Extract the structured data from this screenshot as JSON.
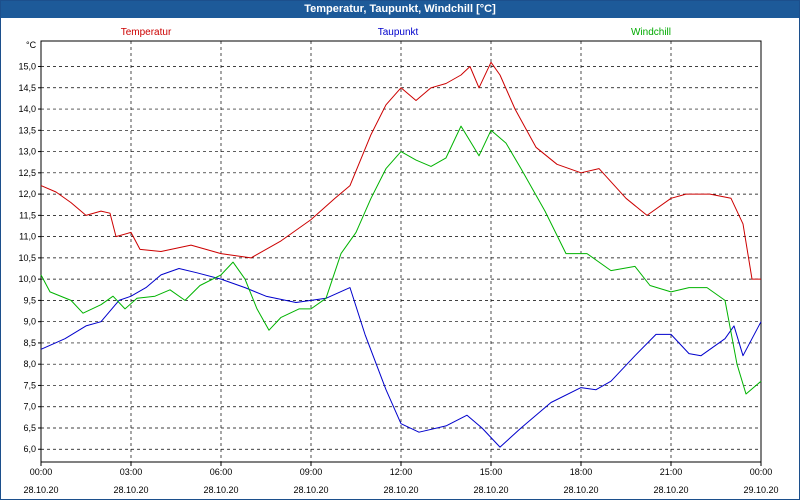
{
  "chart_data": {
    "type": "line",
    "title": "Temperatur, Taupunkt, Windchill [°C]",
    "ylabel": "°C",
    "xlabel": "",
    "ylim": [
      5.7,
      15.6
    ],
    "xlim": [
      0,
      24
    ],
    "grid": true,
    "yticks": [
      "6,0",
      "6,5",
      "7,0",
      "7,5",
      "8,0",
      "8,5",
      "9,0",
      "9,5",
      "10,0",
      "10,5",
      "11,0",
      "11,5",
      "12,0",
      "12,5",
      "13,0",
      "13,5",
      "14,0",
      "14,5",
      "15,0"
    ],
    "xticks": [
      {
        "time": "00:00",
        "date": "28.10.20"
      },
      {
        "time": "03:00",
        "date": "28.10.20"
      },
      {
        "time": "06:00",
        "date": "28.10.20"
      },
      {
        "time": "09:00",
        "date": "28.10.20"
      },
      {
        "time": "12:00",
        "date": "28.10.20"
      },
      {
        "time": "15:00",
        "date": "28.10.20"
      },
      {
        "time": "18:00",
        "date": "28.10.20"
      },
      {
        "time": "21:00",
        "date": "28.10.20"
      },
      {
        "time": "00:00",
        "date": "29.10.20"
      }
    ],
    "legend_placement": "top",
    "series": [
      {
        "name": "Temperatur",
        "color": "#cc0000",
        "points": [
          [
            0,
            12.2
          ],
          [
            0.5,
            12.05
          ],
          [
            1,
            11.8
          ],
          [
            1.5,
            11.5
          ],
          [
            2,
            11.6
          ],
          [
            2.3,
            11.55
          ],
          [
            2.5,
            11.0
          ],
          [
            3,
            11.1
          ],
          [
            3.3,
            10.7
          ],
          [
            4,
            10.65
          ],
          [
            5,
            10.8
          ],
          [
            6,
            10.6
          ],
          [
            7,
            10.5
          ],
          [
            8,
            10.9
          ],
          [
            9,
            11.4
          ],
          [
            9.8,
            11.9
          ],
          [
            10.3,
            12.2
          ],
          [
            11,
            13.4
          ],
          [
            11.5,
            14.1
          ],
          [
            12,
            14.5
          ],
          [
            12.5,
            14.2
          ],
          [
            13,
            14.5
          ],
          [
            13.5,
            14.6
          ],
          [
            14,
            14.8
          ],
          [
            14.3,
            15.0
          ],
          [
            14.6,
            14.5
          ],
          [
            15,
            15.1
          ],
          [
            15.3,
            14.8
          ],
          [
            15.8,
            14.0
          ],
          [
            16.5,
            13.1
          ],
          [
            17.2,
            12.7
          ],
          [
            18,
            12.5
          ],
          [
            18.6,
            12.6
          ],
          [
            19.5,
            11.9
          ],
          [
            20.2,
            11.5
          ],
          [
            21,
            11.9
          ],
          [
            21.5,
            12.0
          ],
          [
            22.3,
            12.0
          ],
          [
            23,
            11.9
          ],
          [
            23.4,
            11.3
          ],
          [
            23.7,
            10.0
          ],
          [
            24,
            10.0
          ]
        ]
      },
      {
        "name": "Taupunkt",
        "color": "#0000cc",
        "points": [
          [
            0,
            8.35
          ],
          [
            0.8,
            8.6
          ],
          [
            1.5,
            8.9
          ],
          [
            2,
            9.0
          ],
          [
            2.6,
            9.5
          ],
          [
            3,
            9.6
          ],
          [
            3.5,
            9.8
          ],
          [
            4,
            10.1
          ],
          [
            4.6,
            10.25
          ],
          [
            5.2,
            10.15
          ],
          [
            6,
            10.0
          ],
          [
            6.8,
            9.8
          ],
          [
            7.5,
            9.6
          ],
          [
            8.5,
            9.45
          ],
          [
            9.5,
            9.55
          ],
          [
            10.3,
            9.8
          ],
          [
            10.8,
            8.7
          ],
          [
            11.5,
            7.4
          ],
          [
            12,
            6.6
          ],
          [
            12.6,
            6.4
          ],
          [
            13.5,
            6.55
          ],
          [
            14.2,
            6.8
          ],
          [
            14.7,
            6.5
          ],
          [
            15.3,
            6.05
          ],
          [
            16,
            6.5
          ],
          [
            17,
            7.1
          ],
          [
            18,
            7.45
          ],
          [
            18.5,
            7.4
          ],
          [
            19,
            7.6
          ],
          [
            19.8,
            8.2
          ],
          [
            20.5,
            8.7
          ],
          [
            21,
            8.7
          ],
          [
            21.6,
            8.25
          ],
          [
            22,
            8.2
          ],
          [
            22.8,
            8.6
          ],
          [
            23.1,
            8.9
          ],
          [
            23.4,
            8.2
          ],
          [
            24,
            9.0
          ]
        ]
      },
      {
        "name": "Windchill",
        "color": "#00b300",
        "points": [
          [
            0,
            10.1
          ],
          [
            0.3,
            9.7
          ],
          [
            1,
            9.5
          ],
          [
            1.4,
            9.2
          ],
          [
            2,
            9.4
          ],
          [
            2.4,
            9.6
          ],
          [
            2.8,
            9.3
          ],
          [
            3.2,
            9.55
          ],
          [
            3.8,
            9.6
          ],
          [
            4.3,
            9.75
          ],
          [
            4.8,
            9.5
          ],
          [
            5.3,
            9.85
          ],
          [
            6,
            10.1
          ],
          [
            6.4,
            10.4
          ],
          [
            6.8,
            10.0
          ],
          [
            7.2,
            9.3
          ],
          [
            7.6,
            8.8
          ],
          [
            8,
            9.1
          ],
          [
            8.6,
            9.3
          ],
          [
            9,
            9.3
          ],
          [
            9.5,
            9.55
          ],
          [
            10,
            10.6
          ],
          [
            10.5,
            11.1
          ],
          [
            11,
            11.9
          ],
          [
            11.5,
            12.6
          ],
          [
            12,
            13.0
          ],
          [
            12.5,
            12.8
          ],
          [
            13,
            12.65
          ],
          [
            13.5,
            12.85
          ],
          [
            14,
            13.6
          ],
          [
            14.6,
            12.9
          ],
          [
            15,
            13.5
          ],
          [
            15.5,
            13.2
          ],
          [
            16,
            12.6
          ],
          [
            16.8,
            11.6
          ],
          [
            17.5,
            10.6
          ],
          [
            18.2,
            10.6
          ],
          [
            19,
            10.2
          ],
          [
            19.8,
            10.3
          ],
          [
            20.3,
            9.85
          ],
          [
            21,
            9.7
          ],
          [
            21.6,
            9.8
          ],
          [
            22.2,
            9.8
          ],
          [
            22.8,
            9.5
          ],
          [
            23.2,
            8.0
          ],
          [
            23.5,
            7.3
          ],
          [
            24,
            7.6
          ]
        ]
      }
    ]
  }
}
